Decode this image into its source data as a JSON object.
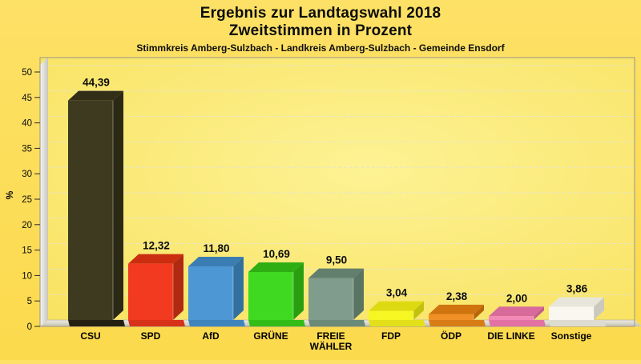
{
  "header": {
    "title_line1": "Ergebnis zur Landtagswahl 2018",
    "title_line2": "Zweitstimmen in Prozent",
    "subtitle": "Stimmkreis Amberg-Sulzbach - Landkreis Amberg-Sulzbach - Gemeinde Ensdorf"
  },
  "chart_data": {
    "type": "bar",
    "style": "3d-bars",
    "title": "Ergebnis zur Landtagswahl 2018",
    "subtitle": "Zweitstimmen in Prozent",
    "region_line": "Stimmkreis Amberg-Sulzbach - Landkreis Amberg-Sulzbach - Gemeinde Ensdorf",
    "xlabel": "",
    "ylabel": "%",
    "ylim": [
      0,
      50
    ],
    "yticks": [
      0,
      5,
      10,
      15,
      20,
      25,
      30,
      35,
      40,
      45,
      50
    ],
    "grid": "dashed-horizontal",
    "legend_position": "none",
    "categories": [
      "CSU",
      "SPD",
      "AfD",
      "GRÜNE",
      "FREIE WÄHLER",
      "FDP",
      "ÖDP",
      "DIE LINKE",
      "Sonstige"
    ],
    "values": [
      44.39,
      12.32,
      11.8,
      10.69,
      9.5,
      3.04,
      2.38,
      2.0,
      3.86
    ],
    "bars": [
      {
        "label": "CSU",
        "label_lines": [
          "CSU"
        ],
        "value": 44.39,
        "value_label": "44,39",
        "color": {
          "face": "#3e3a20",
          "top": "#322e18",
          "side": "#2b2814",
          "base": "#242112"
        }
      },
      {
        "label": "SPD",
        "label_lines": [
          "SPD"
        ],
        "value": 12.32,
        "value_label": "12,32",
        "color": {
          "face": "#f13a20",
          "top": "#cb2d10",
          "side": "#b02a12",
          "base": "#d8311a"
        }
      },
      {
        "label": "AfD",
        "label_lines": [
          "AfD"
        ],
        "value": 11.8,
        "value_label": "11,80",
        "color": {
          "face": "#4e97d5",
          "top": "#3a7db2",
          "side": "#32709e",
          "base": "#3f85bd"
        }
      },
      {
        "label": "GRÜNE",
        "label_lines": [
          "GRÜNE"
        ],
        "value": 10.69,
        "value_label": "10,69",
        "color": {
          "face": "#3fd922",
          "top": "#2fae14",
          "side": "#2a9e11",
          "base": "#33bd16"
        }
      },
      {
        "label": "FREIE WÄHLER",
        "label_lines": [
          "FREIE",
          "WÄHLER"
        ],
        "value": 9.5,
        "value_label": "9,50",
        "color": {
          "face": "#7f9c8c",
          "top": "#627e6d",
          "side": "#5a7464",
          "base": "#6b8a78"
        }
      },
      {
        "label": "FDP",
        "label_lines": [
          "FDP"
        ],
        "value": 3.04,
        "value_label": "3,04",
        "color": {
          "face": "#f6f622",
          "top": "#deda12",
          "side": "#c2c20e",
          "base": "#e3e01a"
        }
      },
      {
        "label": "ÖDP",
        "label_lines": [
          "ÖDP"
        ],
        "value": 2.38,
        "value_label": "2,38",
        "color": {
          "face": "#f19026",
          "top": "#d0740f",
          "side": "#b8660c",
          "base": "#d87d16"
        }
      },
      {
        "label": "DIE LINKE",
        "label_lines": [
          "DIE LINKE"
        ],
        "value": 2.0,
        "value_label": "2,00",
        "color": {
          "face": "#f389b8",
          "top": "#d86a9b",
          "side": "#c25e8a",
          "base": "#e272a4"
        }
      },
      {
        "label": "Sonstige",
        "label_lines": [
          "Sonstige"
        ],
        "value": 3.86,
        "value_label": "3,86",
        "color": {
          "face": "#f9f7ef",
          "top": "#e8e6da",
          "side": "#cbc9bd",
          "base": "#dedbd0"
        }
      }
    ]
  },
  "colors": {
    "page_background_top": "#fde166",
    "page_background_bottom": "#fcda4d",
    "plot_background_center": "#fdf294",
    "plot_background_edge": "#f8e15c",
    "wall_light": "#f5f4f0",
    "wall_dark": "#c8c6bd",
    "floor_light": "#edebe0",
    "floor_dark": "#c6c3b5",
    "gridline": "#e6e3d2",
    "border": "#97948c",
    "text": "#0d0d0d"
  }
}
